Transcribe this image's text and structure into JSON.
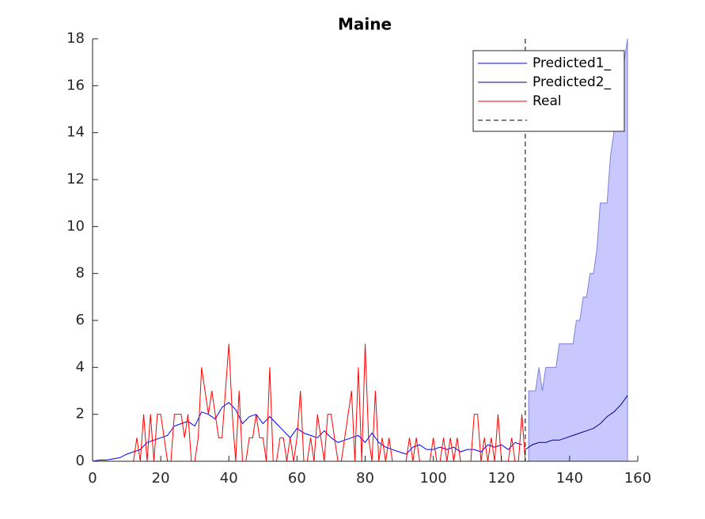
{
  "chart_data": {
    "type": "line",
    "title": "Maine",
    "xlim": [
      0,
      160
    ],
    "xticks": [
      0,
      20,
      40,
      60,
      80,
      100,
      120,
      140,
      160
    ],
    "ylim": [
      0,
      18
    ],
    "yticks": [
      0,
      2,
      4,
      6,
      8,
      10,
      12,
      14,
      16,
      18
    ],
    "grid": false,
    "legend": "top-right",
    "series": [
      {
        "name": "Predicted1_",
        "color": "#0000ff",
        "x": [
          0,
          2,
          4,
          6,
          8,
          10,
          12,
          14,
          16,
          18,
          20,
          22,
          24,
          26,
          28,
          30,
          32,
          34,
          36,
          38,
          40,
          42,
          44,
          46,
          48,
          50,
          52,
          54,
          56,
          58,
          60,
          62,
          64,
          66,
          68,
          70,
          72,
          74,
          76,
          78,
          80,
          82,
          84,
          86,
          88,
          90,
          92,
          94,
          96,
          98,
          100,
          102,
          104,
          106,
          108,
          110,
          112,
          114,
          116,
          118,
          120,
          122,
          124,
          126
        ],
        "values": [
          0,
          0.05,
          0.05,
          0.1,
          0.15,
          0.3,
          0.4,
          0.5,
          0.8,
          0.9,
          1.0,
          1.1,
          1.5,
          1.6,
          1.7,
          1.5,
          2.1,
          2.0,
          1.8,
          2.3,
          2.5,
          2.2,
          1.6,
          1.9,
          2.0,
          1.6,
          1.9,
          1.6,
          1.3,
          1.0,
          1.4,
          1.2,
          1.1,
          1.0,
          1.3,
          1.0,
          0.8,
          0.9,
          1.0,
          1.1,
          0.8,
          1.2,
          0.8,
          0.6,
          0.5,
          0.4,
          0.3,
          0.6,
          0.7,
          0.5,
          0.5,
          0.6,
          0.5,
          0.6,
          0.4,
          0.5,
          0.5,
          0.4,
          0.7,
          0.6,
          0.7,
          0.5,
          0.8,
          0.7
        ]
      },
      {
        "name": "Predicted2_",
        "color": "#00008b",
        "x": [
          127,
          129,
          131,
          133,
          135,
          137,
          139,
          141,
          143,
          145,
          147,
          149,
          151,
          153,
          155,
          157
        ],
        "values": [
          0.5,
          0.7,
          0.8,
          0.8,
          0.9,
          0.9,
          1.0,
          1.1,
          1.2,
          1.3,
          1.4,
          1.6,
          1.9,
          2.1,
          2.4,
          2.8
        ]
      },
      {
        "name": "Real",
        "color": "#ff0000",
        "x": [
          0,
          1,
          2,
          3,
          4,
          5,
          6,
          7,
          8,
          9,
          10,
          11,
          12,
          13,
          14,
          15,
          16,
          17,
          18,
          19,
          20,
          21,
          22,
          23,
          24,
          25,
          26,
          27,
          28,
          29,
          30,
          31,
          32,
          33,
          34,
          35,
          36,
          37,
          38,
          39,
          40,
          41,
          42,
          43,
          44,
          45,
          46,
          47,
          48,
          49,
          50,
          51,
          52,
          53,
          54,
          55,
          56,
          57,
          58,
          59,
          60,
          61,
          62,
          63,
          64,
          65,
          66,
          67,
          68,
          69,
          70,
          71,
          72,
          73,
          74,
          75,
          76,
          77,
          78,
          79,
          80,
          81,
          82,
          83,
          84,
          85,
          86,
          87,
          88,
          89,
          90,
          91,
          92,
          93,
          94,
          95,
          96,
          97,
          98,
          99,
          100,
          101,
          102,
          103,
          104,
          105,
          106,
          107,
          108,
          109,
          110,
          111,
          112,
          113,
          114,
          115,
          116,
          117,
          118,
          119,
          120,
          121,
          122,
          123,
          124,
          125,
          126,
          127
        ],
        "values": [
          0,
          0,
          0,
          0,
          0,
          0,
          0,
          0,
          0,
          0,
          0,
          0,
          0,
          1,
          0,
          2,
          0,
          2,
          0,
          2,
          2,
          1,
          0,
          0,
          2,
          2,
          2,
          1,
          2,
          0,
          0,
          1,
          4,
          3,
          2,
          3,
          2,
          1,
          1,
          3,
          5,
          2,
          0,
          3,
          0,
          0,
          1,
          1,
          2,
          1,
          1,
          0,
          4,
          0,
          0,
          1,
          1,
          0,
          1,
          0,
          1,
          3,
          0,
          0,
          1,
          0,
          2,
          1,
          0,
          2,
          2,
          1,
          0,
          0,
          1,
          2,
          3,
          0,
          4,
          0,
          5,
          1,
          0,
          3,
          0,
          1,
          0,
          1,
          0,
          0,
          0,
          0,
          0,
          1,
          0,
          1,
          0,
          0,
          0,
          0,
          1,
          0,
          0,
          1,
          0,
          1,
          0,
          1,
          0,
          0,
          0,
          0,
          2,
          2,
          0,
          1,
          0,
          1,
          0,
          2,
          0,
          0,
          0,
          1,
          0,
          0,
          2,
          0
        ]
      }
    ],
    "band": {
      "color": "#c8c8ff",
      "x": [
        128,
        129,
        130,
        131,
        132,
        133,
        134,
        135,
        136,
        137,
        138,
        139,
        140,
        141,
        142,
        143,
        144,
        145,
        146,
        147,
        148,
        149,
        150,
        151,
        152,
        153,
        154,
        155,
        156,
        157
      ],
      "upper": [
        3,
        3,
        3,
        4,
        3,
        4,
        4,
        4,
        4,
        5,
        5,
        5,
        5,
        5,
        6,
        6,
        7,
        7,
        8,
        8,
        9,
        11,
        11,
        11,
        13,
        14,
        15,
        16,
        17,
        18
      ]
    },
    "vline": {
      "x": 127,
      "color": "#000000"
    }
  }
}
